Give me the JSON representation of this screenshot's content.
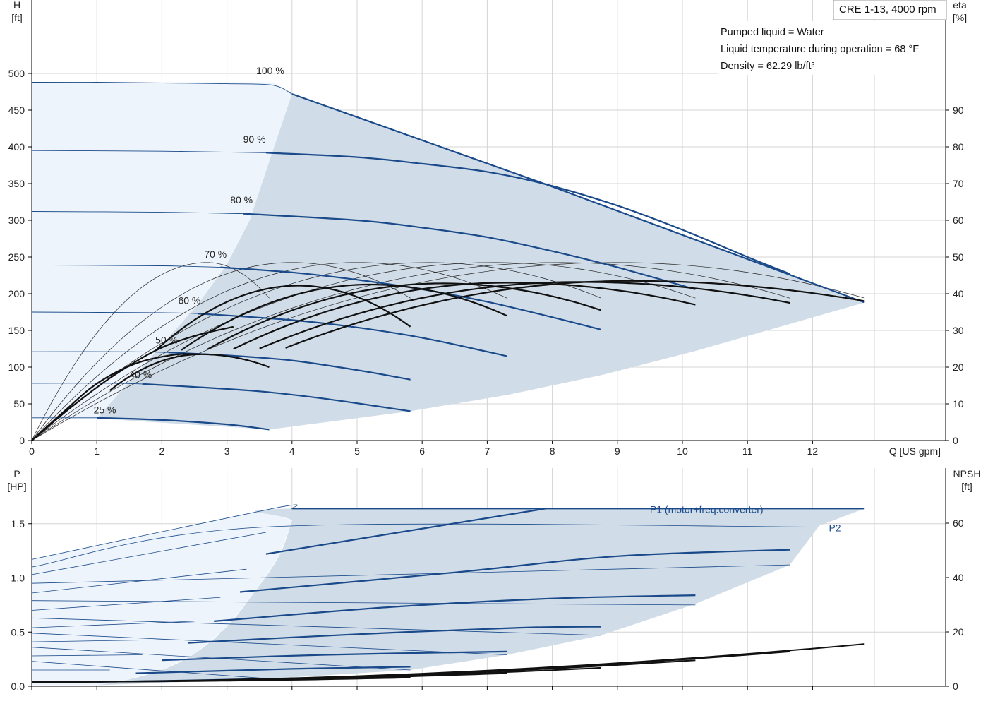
{
  "header": {
    "pump_title": "CRE 1-13, 4000 rpm",
    "info_lines": [
      "Pumped liquid = Water",
      "Liquid temperature during operation = 68 °F",
      "Density = 62.29 lb/ft³"
    ]
  },
  "colors": {
    "op_area": "#d0dce8",
    "light_area": "#eef4fb",
    "blue_curve": "#1a4a8a",
    "black_curve": "#111111",
    "grid": "#d4d4d4"
  },
  "chart_data": [
    {
      "type": "line",
      "name": "head-efficiency",
      "x_label": "Q [US gpm]",
      "y_label_left": [
        "H",
        "[ft]"
      ],
      "y_label_right": [
        "eta",
        "[%]"
      ],
      "xlim": [
        0,
        13.5
      ],
      "x_ticks": [
        0,
        1,
        2,
        3,
        4,
        5,
        6,
        7,
        8,
        9,
        10,
        11,
        12
      ],
      "ylim_left": [
        0,
        500
      ],
      "y_ticks_left": [
        0,
        50,
        100,
        150,
        200,
        250,
        300,
        350,
        400,
        450,
        500
      ],
      "ylim_right": [
        0,
        100
      ],
      "y_ticks_right": [
        0,
        10,
        20,
        30,
        40,
        50,
        60,
        70,
        80,
        90
      ],
      "grid": true,
      "speed_labels": [
        {
          "text": "100 %",
          "x": 3.45,
          "y": 499
        },
        {
          "text": "90 %",
          "x": 3.25,
          "y": 406
        },
        {
          "text": "80 %",
          "x": 3.05,
          "y": 323
        },
        {
          "text": "70 %",
          "x": 2.65,
          "y": 249
        },
        {
          "text": "60 %",
          "x": 2.25,
          "y": 186
        },
        {
          "text": "50 %",
          "x": 1.9,
          "y": 132
        },
        {
          "text": "40 %",
          "x": 1.5,
          "y": 85
        },
        {
          "text": "25 %",
          "x": 0.95,
          "y": 37
        }
      ],
      "operating_area": [
        [
          1,
          30
        ],
        [
          1.3,
          60
        ],
        [
          1.7,
          100
        ],
        [
          2.1,
          140
        ],
        [
          2.55,
          185
        ],
        [
          3.0,
          240
        ],
        [
          3.35,
          300
        ],
        [
          3.65,
          380
        ],
        [
          3.9,
          446
        ],
        [
          4.0,
          472
        ],
        [
          7.9,
          349
        ],
        [
          12.8,
          188
        ],
        [
          10.2,
          122
        ],
        [
          8.75,
          89
        ],
        [
          7.3,
          62
        ],
        [
          5.82,
          40
        ],
        [
          3.65,
          15
        ],
        [
          1,
          30
        ]
      ],
      "light_area": [
        [
          0,
          488
        ],
        [
          3.7,
          488
        ],
        [
          4.0,
          472
        ],
        [
          3.9,
          446
        ],
        [
          3.65,
          380
        ],
        [
          3.35,
          300
        ],
        [
          3.0,
          240
        ],
        [
          2.55,
          185
        ],
        [
          2.1,
          140
        ],
        [
          1.7,
          100
        ],
        [
          1.3,
          60
        ],
        [
          1,
          30
        ],
        [
          0,
          30
        ]
      ],
      "head_curves": [
        {
          "from_shutoff": [
            [
              0,
              488
            ],
            [
              1,
              488
            ],
            [
              2,
              487
            ],
            [
              3,
              486
            ],
            [
              3.7,
              484
            ],
            [
              4.0,
              472
            ]
          ],
          "line": [
            [
              4.0,
              472
            ],
            [
              7.9,
              349
            ],
            [
              12.8,
              188
            ]
          ]
        },
        {
          "from_shutoff": [
            [
              0,
              395
            ],
            [
              2,
              394
            ],
            [
              3.6,
              392
            ]
          ],
          "line": [
            [
              3.6,
              392
            ],
            [
              5,
              386
            ],
            [
              6,
              377
            ],
            [
              7,
              366
            ],
            [
              7.9,
              349
            ],
            [
              9,
              320
            ],
            [
              10,
              287
            ],
            [
              11,
              250
            ],
            [
              11.65,
              227
            ]
          ]
        },
        {
          "from_shutoff": [
            [
              0,
              312
            ],
            [
              2,
              311
            ],
            [
              3.25,
              309
            ]
          ],
          "line": [
            [
              3.25,
              309
            ],
            [
              5,
              300
            ],
            [
              6,
              290
            ],
            [
              7,
              277
            ],
            [
              8,
              258
            ],
            [
              9,
              236
            ],
            [
              10.2,
              206
            ]
          ]
        },
        {
          "from_shutoff": [
            [
              0,
              239
            ],
            [
              2,
              238
            ],
            [
              2.9,
              236
            ]
          ],
          "line": [
            [
              2.9,
              236
            ],
            [
              4,
              229
            ],
            [
              5,
              219
            ],
            [
              6,
              206
            ],
            [
              7,
              189
            ],
            [
              8,
              168
            ],
            [
              8.75,
              151
            ]
          ]
        },
        {
          "from_shutoff": [
            [
              0,
              175
            ],
            [
              2,
              174
            ],
            [
              2.55,
              173
            ]
          ],
          "line": [
            [
              2.55,
              173
            ],
            [
              4,
              164
            ],
            [
              5,
              154
            ],
            [
              6,
              140
            ],
            [
              7,
              121
            ],
            [
              7.3,
              115
            ]
          ]
        },
        {
          "from_shutoff": [
            [
              0,
              121
            ],
            [
              1.5,
              121
            ],
            [
              2.1,
              120
            ]
          ],
          "line": [
            [
              2.1,
              120
            ],
            [
              3,
              116
            ],
            [
              4,
              109
            ],
            [
              5,
              96
            ],
            [
              5.82,
              83
            ]
          ]
        },
        {
          "from_shutoff": [
            [
              0,
              78
            ],
            [
              1.2,
              78
            ],
            [
              1.7,
              77
            ]
          ],
          "line": [
            [
              1.7,
              77
            ],
            [
              2.5,
              73
            ],
            [
              3.5,
              67
            ],
            [
              4.5,
              57
            ],
            [
              5.82,
              40
            ]
          ]
        },
        {
          "from_shutoff": [
            [
              0,
              31
            ],
            [
              1,
              31
            ]
          ],
          "line": [
            [
              1,
              31
            ],
            [
              2,
              28
            ],
            [
              3,
              22
            ],
            [
              3.65,
              15
            ]
          ]
        }
      ],
      "eff_thin_curves": [
        {
          "qmax": 12.8,
          "peak": 48.5,
          "qpeak": 9.0
        },
        {
          "qmax": 11.65,
          "peak": 48.5,
          "qpeak": 8.1
        },
        {
          "qmax": 10.2,
          "peak": 48.5,
          "qpeak": 7.1
        },
        {
          "qmax": 8.75,
          "peak": 48.5,
          "qpeak": 6.1
        },
        {
          "qmax": 7.3,
          "peak": 48.5,
          "qpeak": 5.0
        },
        {
          "qmax": 5.82,
          "peak": 48.5,
          "qpeak": 4.0
        },
        {
          "qmax": 3.65,
          "peak": 48.5,
          "qpeak": 2.7
        }
      ],
      "eff_thick_curves": [
        {
          "qmax": 12.8,
          "qstart": 3.9,
          "peak": 43.5,
          "qpeak": 9.2,
          "end": 38
        },
        {
          "qmax": 11.65,
          "qstart": 3.5,
          "peak": 43.2,
          "qpeak": 8.4,
          "end": 37.5
        },
        {
          "qmax": 10.2,
          "qstart": 3.1,
          "peak": 43.0,
          "qpeak": 7.3,
          "end": 37
        },
        {
          "qmax": 8.75,
          "qstart": 2.7,
          "peak": 42.8,
          "qpeak": 6.3,
          "end": 35.5
        },
        {
          "qmax": 7.3,
          "qstart": 2.3,
          "peak": 42.5,
          "qpeak": 5.2,
          "end": 34
        },
        {
          "qmax": 5.82,
          "qstart": 1.9,
          "peak": 42.2,
          "qpeak": 4.1,
          "end": 31
        },
        {
          "qmax": 3.65,
          "qstart": 1.2,
          "peak": 23.5,
          "qpeak": 2.6,
          "end": 20
        }
      ]
    },
    {
      "type": "line",
      "name": "power-npsh",
      "y_label_left": [
        "P",
        "[HP]"
      ],
      "y_label_right": [
        "NPSH",
        "[ft]"
      ],
      "xlim": [
        0,
        13.5
      ],
      "ylim_left": [
        0,
        1.65
      ],
      "y_ticks_left": [
        0.0,
        0.5,
        1.0,
        1.5
      ],
      "y_tick_labels_left": [
        "0.0",
        "0.5",
        "1.0",
        "1.5"
      ],
      "ylim_right": [
        0,
        66
      ],
      "y_ticks_right": [
        0,
        20,
        40,
        60
      ],
      "grid": true,
      "series_labels": [
        {
          "text": "P1 (motor+freq.converter)",
          "x": 9.5,
          "y": 1.6
        },
        {
          "text": "P2",
          "x": 12.25,
          "y": 1.43
        }
      ],
      "operating_area": [
        [
          1,
          0.01
        ],
        [
          1.4,
          0.05
        ],
        [
          2,
          0.15
        ],
        [
          2.5,
          0.3
        ],
        [
          3,
          0.55
        ],
        [
          3.4,
          0.85
        ],
        [
          3.8,
          1.2
        ],
        [
          4.0,
          1.52
        ],
        [
          4.1,
          1.64
        ],
        [
          12.8,
          1.64
        ],
        [
          12.1,
          1.48
        ],
        [
          11.65,
          1.12
        ],
        [
          10.2,
          0.76
        ],
        [
          8.75,
          0.47
        ],
        [
          7.3,
          0.29
        ],
        [
          5.82,
          0.15
        ],
        [
          3.65,
          0.07
        ],
        [
          1,
          0.01
        ]
      ],
      "light_area": [
        [
          0,
          1.17
        ],
        [
          3.7,
          1.64
        ],
        [
          4.1,
          1.64
        ],
        [
          4.0,
          1.52
        ],
        [
          3.8,
          1.2
        ],
        [
          3.4,
          0.85
        ],
        [
          3.0,
          0.55
        ],
        [
          2.5,
          0.3
        ],
        [
          2.0,
          0.15
        ],
        [
          1.4,
          0.05
        ],
        [
          1,
          0.01
        ],
        [
          0,
          0.01
        ]
      ],
      "p1_curves": [
        {
          "thin": [
            [
              0,
              1.17
            ],
            [
              3.7,
              1.64
            ],
            [
              4.0,
              1.64
            ]
          ],
          "thick": [
            [
              4.0,
              1.64
            ],
            [
              12.8,
              1.64
            ]
          ]
        },
        {
          "thin": [
            [
              0,
              1.03
            ],
            [
              3.6,
              1.42
            ]
          ],
          "thick": [
            [
              3.6,
              1.22
            ],
            [
              7.9,
              1.64
            ]
          ]
        },
        {
          "thin": [
            [
              0,
              0.86
            ],
            [
              3.3,
              1.08
            ]
          ],
          "thick": [
            [
              3.2,
              0.87
            ],
            [
              6.5,
              1.05
            ],
            [
              9,
              1.2
            ],
            [
              11.65,
              1.26
            ]
          ]
        },
        {
          "thin": [
            [
              0,
              0.7
            ],
            [
              2.9,
              0.82
            ]
          ],
          "thick": [
            [
              2.8,
              0.6
            ],
            [
              5.5,
              0.73
            ],
            [
              8,
              0.81
            ],
            [
              10.2,
              0.84
            ]
          ]
        },
        {
          "thin": [
            [
              0,
              0.54
            ],
            [
              2.5,
              0.6
            ]
          ],
          "thick": [
            [
              2.4,
              0.4
            ],
            [
              5,
              0.48
            ],
            [
              7.5,
              0.54
            ],
            [
              8.75,
              0.55
            ]
          ]
        },
        {
          "thin": [
            [
              0,
              0.41
            ],
            [
              2.1,
              0.43
            ]
          ],
          "thick": [
            [
              2.0,
              0.24
            ],
            [
              4.5,
              0.29
            ],
            [
              7.3,
              0.32
            ]
          ]
        },
        {
          "thin": [
            [
              0,
              0.28
            ],
            [
              1.7,
              0.29
            ]
          ],
          "thick": [
            [
              1.6,
              0.12
            ],
            [
              4,
              0.16
            ],
            [
              5.82,
              0.18
            ]
          ]
        },
        {
          "thin": [
            [
              0,
              0.15
            ],
            [
              1.2,
              0.15
            ]
          ],
          "thick": [
            [
              1.0,
              0.04
            ],
            [
              2.5,
              0.055
            ],
            [
              3.65,
              0.07
            ]
          ]
        }
      ],
      "p2_curves": [
        {
          "thin": [
            [
              0,
              1.1
            ],
            [
              3.6,
              1.47
            ],
            [
              12.1,
              1.47
            ]
          ],
          "thick": []
        },
        {
          "thin": [
            [
              0,
              0.95
            ],
            [
              11.65,
              1.12
            ]
          ],
          "thick": []
        },
        {
          "thin": [
            [
              0,
              0.79
            ],
            [
              10.2,
              0.75
            ]
          ],
          "thick": []
        },
        {
          "thin": [
            [
              0,
              0.63
            ],
            [
              8.75,
              0.47
            ]
          ],
          "thick": []
        },
        {
          "thin": [
            [
              0,
              0.49
            ],
            [
              7.3,
              0.29
            ]
          ],
          "thick": []
        },
        {
          "thin": [
            [
              0,
              0.36
            ],
            [
              5.82,
              0.15
            ]
          ],
          "thick": []
        },
        {
          "thin": [
            [
              0,
              0.23
            ],
            [
              3.65,
              0.07
            ]
          ],
          "thick": []
        }
      ],
      "npsh_curves": [
        {
          "qmax": 12.8,
          "end": 0.39
        },
        {
          "qmax": 11.65,
          "end": 0.32
        },
        {
          "qmax": 10.2,
          "end": 0.24
        },
        {
          "qmax": 8.75,
          "end": 0.17
        },
        {
          "qmax": 7.3,
          "end": 0.12
        },
        {
          "qmax": 5.82,
          "end": 0.08
        }
      ]
    }
  ]
}
